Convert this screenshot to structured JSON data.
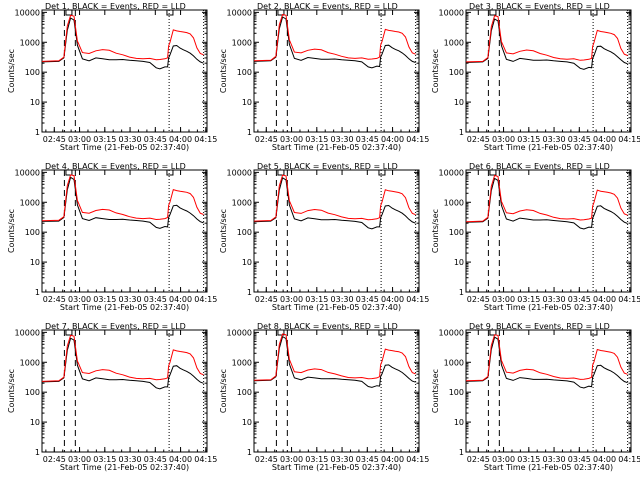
{
  "chart_data": {
    "type": "line",
    "layout": "3x3 grid of panels",
    "x_axis": {
      "label": "Start Time (21-Feb-05 02:37:40)",
      "range_minutes": [
        0,
        98
      ],
      "tick_labels": [
        "02:45",
        "03:00",
        "03:15",
        "03:30",
        "03:45",
        "04:00",
        "04:15"
      ],
      "tick_positions_minutes": [
        7.3,
        22.3,
        37.3,
        52.3,
        67.3,
        82.3,
        97.3
      ]
    },
    "y_axis": {
      "label": "Counts/sec",
      "scale": "log",
      "range": [
        1,
        12000
      ],
      "tick_labels": [
        "1",
        "10",
        "100",
        "1000",
        "10000"
      ],
      "tick_values": [
        1,
        10,
        100,
        1000,
        10000
      ]
    },
    "series_legend": {
      "black": "Events",
      "red": "LLD",
      "black_color": "#000000",
      "red_color": "#ff0000"
    },
    "markers": {
      "dashed_lines_minutes": [
        13.3,
        19.8
      ],
      "dotted_lines_minutes": [
        75.5,
        96.0
      ]
    },
    "panels": [
      {
        "title": "Det 1, BLACK = Events, RED = LLD",
        "x": [
          0,
          10,
          13,
          15,
          17,
          19,
          21,
          24,
          28,
          32,
          36,
          40,
          44,
          48,
          52,
          56,
          60,
          64,
          67.8,
          70,
          73,
          74.6,
          75.2,
          76,
          78,
          80,
          82,
          84,
          86,
          88,
          90,
          92,
          94,
          96
        ],
        "black": [
          220,
          230,
          300,
          2500,
          6500,
          5500,
          800,
          280,
          240,
          300,
          280,
          260,
          260,
          265,
          250,
          240,
          230,
          210,
          140,
          130,
          150,
          150,
          300,
          380,
          750,
          780,
          640,
          560,
          500,
          430,
          350,
          270,
          220,
          200
        ],
        "red": [
          230,
          240,
          320,
          3500,
          8000,
          7500,
          1100,
          450,
          420,
          520,
          570,
          540,
          430,
          380,
          320,
          290,
          280,
          290,
          260,
          265,
          280,
          300,
          750,
          1000,
          2600,
          2400,
          2300,
          2200,
          2100,
          1900,
          1400,
          650,
          420,
          380
        ]
      },
      {
        "title": "Det 2, BLACK = Events, RED = LLD",
        "x": [
          0,
          10,
          13,
          15,
          17,
          19,
          21,
          24,
          28,
          32,
          36,
          40,
          44,
          48,
          52,
          56,
          60,
          64,
          67.8,
          70,
          73,
          74.6,
          75.2,
          76,
          78,
          80,
          82,
          84,
          86,
          88,
          90,
          92,
          94,
          96
        ],
        "black": [
          230,
          240,
          320,
          2800,
          7000,
          6000,
          850,
          290,
          250,
          310,
          290,
          270,
          270,
          275,
          260,
          250,
          240,
          220,
          150,
          140,
          160,
          155,
          320,
          400,
          780,
          800,
          660,
          580,
          520,
          440,
          360,
          280,
          230,
          210
        ],
        "red": [
          240,
          250,
          340,
          3800,
          8500,
          8000,
          1200,
          470,
          440,
          540,
          590,
          560,
          450,
          400,
          340,
          300,
          290,
          300,
          270,
          275,
          290,
          320,
          800,
          1050,
          2700,
          2500,
          2400,
          2300,
          2200,
          2000,
          1500,
          700,
          440,
          400
        ]
      },
      {
        "title": "Det 3, BLACK = Events, RED = LLD",
        "x": [
          0,
          10,
          13,
          15,
          17,
          19,
          21,
          24,
          28,
          32,
          36,
          40,
          44,
          48,
          52,
          56,
          60,
          64,
          67.8,
          70,
          73,
          74.6,
          75.2,
          76,
          78,
          80,
          82,
          84,
          86,
          88,
          90,
          92,
          94,
          96
        ],
        "black": [
          210,
          220,
          290,
          2400,
          6000,
          5200,
          780,
          270,
          230,
          290,
          270,
          250,
          250,
          255,
          240,
          230,
          220,
          200,
          135,
          125,
          145,
          140,
          290,
          360,
          720,
          740,
          610,
          540,
          480,
          410,
          330,
          260,
          210,
          190
        ],
        "red": [
          220,
          230,
          310,
          3300,
          7800,
          7200,
          1050,
          440,
          410,
          500,
          550,
          520,
          420,
          370,
          310,
          280,
          270,
          280,
          250,
          255,
          270,
          290,
          720,
          980,
          2500,
          2300,
          2200,
          2100,
          2000,
          1800,
          1350,
          620,
          400,
          360
        ]
      },
      {
        "title": "Det 4, BLACK = Events, RED = LLD",
        "x": [
          0,
          10,
          13,
          15,
          17,
          19,
          21,
          24,
          28,
          32,
          36,
          40,
          44,
          48,
          52,
          56,
          60,
          64,
          67.8,
          70,
          73,
          74.6,
          75.2,
          76,
          78,
          80,
          82,
          84,
          86,
          88,
          90,
          92,
          94,
          96
        ],
        "black": [
          230,
          235,
          310,
          2600,
          6800,
          5800,
          820,
          285,
          245,
          305,
          285,
          265,
          265,
          270,
          255,
          245,
          235,
          215,
          145,
          135,
          155,
          150,
          310,
          390,
          760,
          790,
          650,
          570,
          510,
          435,
          355,
          275,
          225,
          205
        ],
        "red": [
          240,
          250,
          330,
          3600,
          8200,
          7800,
          1150,
          460,
          430,
          530,
          580,
          550,
          440,
          390,
          330,
          295,
          285,
          295,
          265,
          270,
          285,
          310,
          780,
          1020,
          2650,
          2450,
          2350,
          2250,
          2150,
          1950,
          1450,
          680,
          430,
          390
        ]
      },
      {
        "title": "Det 5, BLACK = Events, RED = LLD",
        "x": [
          0,
          10,
          13,
          15,
          17,
          19,
          21,
          24,
          28,
          32,
          36,
          40,
          44,
          48,
          52,
          56,
          60,
          64,
          67.8,
          70,
          73,
          74.6,
          75.2,
          76,
          78,
          80,
          82,
          84,
          86,
          88,
          90,
          92,
          94,
          96
        ],
        "black": [
          225,
          235,
          305,
          2550,
          6600,
          5600,
          810,
          280,
          240,
          300,
          280,
          260,
          260,
          265,
          250,
          240,
          230,
          210,
          140,
          130,
          150,
          150,
          305,
          385,
          750,
          780,
          640,
          560,
          500,
          430,
          350,
          270,
          220,
          200
        ],
        "red": [
          235,
          245,
          325,
          3550,
          8100,
          7600,
          1120,
          455,
          425,
          525,
          575,
          545,
          435,
          385,
          325,
          290,
          280,
          290,
          260,
          265,
          280,
          305,
          760,
          1010,
          2620,
          2420,
          2320,
          2220,
          2120,
          1920,
          1420,
          660,
          425,
          385
        ]
      },
      {
        "title": "Det 6, BLACK = Events, RED = LLD",
        "x": [
          0,
          10,
          13,
          15,
          17,
          19,
          21,
          24,
          28,
          32,
          36,
          40,
          44,
          48,
          52,
          56,
          60,
          64,
          67.8,
          70,
          73,
          74.6,
          75.2,
          76,
          78,
          80,
          82,
          84,
          86,
          88,
          90,
          92,
          94,
          96
        ],
        "black": [
          215,
          225,
          295,
          2450,
          6300,
          5400,
          790,
          275,
          235,
          295,
          275,
          255,
          255,
          260,
          245,
          235,
          225,
          205,
          138,
          128,
          148,
          145,
          295,
          370,
          735,
          760,
          625,
          550,
          490,
          420,
          340,
          265,
          215,
          195
        ],
        "red": [
          225,
          235,
          315,
          3400,
          7900,
          7300,
          1080,
          445,
          415,
          510,
          560,
          530,
          425,
          375,
          315,
          285,
          275,
          285,
          255,
          260,
          275,
          295,
          740,
          990,
          2550,
          2350,
          2250,
          2150,
          2050,
          1850,
          1380,
          640,
          410,
          370
        ]
      },
      {
        "title": "Det 7, BLACK = Events, RED = LLD",
        "x": [
          0,
          10,
          13,
          15,
          17,
          19,
          21,
          24,
          28,
          32,
          36,
          40,
          44,
          48,
          52,
          56,
          60,
          64,
          67.8,
          70,
          73,
          74.6,
          75.2,
          76,
          78,
          80,
          82,
          84,
          86,
          88,
          90,
          92,
          94,
          96
        ],
        "black": [
          220,
          230,
          300,
          2500,
          6400,
          5500,
          800,
          280,
          240,
          300,
          280,
          260,
          260,
          265,
          250,
          240,
          230,
          210,
          140,
          130,
          150,
          150,
          300,
          380,
          740,
          770,
          630,
          555,
          495,
          425,
          345,
          268,
          218,
          198
        ],
        "red": [
          230,
          240,
          320,
          3500,
          8000,
          7500,
          1100,
          450,
          420,
          520,
          570,
          540,
          430,
          380,
          320,
          290,
          280,
          290,
          260,
          265,
          280,
          300,
          750,
          1000,
          2600,
          2400,
          2300,
          2200,
          2100,
          1900,
          1400,
          650,
          420,
          380
        ]
      },
      {
        "title": "Det 8, BLACK = Events, RED = LLD",
        "x": [
          0,
          10,
          13,
          15,
          17,
          19,
          21,
          24,
          28,
          32,
          36,
          40,
          44,
          48,
          52,
          56,
          60,
          64,
          67.8,
          70,
          73,
          74.6,
          75.2,
          76,
          78,
          80,
          82,
          84,
          86,
          88,
          90,
          92,
          94,
          96
        ],
        "black": [
          240,
          250,
          330,
          2900,
          7200,
          6200,
          870,
          300,
          260,
          320,
          300,
          280,
          280,
          285,
          270,
          260,
          250,
          230,
          155,
          145,
          165,
          160,
          330,
          410,
          800,
          820,
          680,
          600,
          535,
          455,
          370,
          290,
          235,
          215
        ],
        "red": [
          250,
          260,
          350,
          3900,
          8800,
          8300,
          1250,
          480,
          450,
          550,
          600,
          570,
          460,
          410,
          350,
          310,
          300,
          310,
          280,
          285,
          300,
          330,
          820,
          1080,
          2750,
          2550,
          2450,
          2350,
          2250,
          2050,
          1550,
          720,
          450,
          410
        ]
      },
      {
        "title": "Det 9, BLACK = Events, RED = LLD",
        "x": [
          0,
          10,
          13,
          15,
          17,
          19,
          21,
          24,
          28,
          32,
          36,
          40,
          44,
          48,
          52,
          56,
          60,
          64,
          67.8,
          70,
          73,
          74.6,
          75.2,
          76,
          78,
          80,
          82,
          84,
          86,
          88,
          90,
          92,
          94,
          96
        ],
        "black": [
          230,
          240,
          315,
          2650,
          6900,
          5900,
          830,
          288,
          248,
          308,
          288,
          268,
          268,
          272,
          258,
          248,
          238,
          218,
          148,
          138,
          158,
          152,
          315,
          395,
          770,
          795,
          655,
          575,
          515,
          438,
          358,
          278,
          228,
          208
        ],
        "red": [
          240,
          250,
          335,
          3650,
          8300,
          7900,
          1160,
          465,
          435,
          535,
          585,
          555,
          445,
          395,
          335,
          298,
          288,
          298,
          268,
          272,
          288,
          315,
          790,
          1030,
          2680,
          2480,
          2380,
          2280,
          2180,
          1980,
          1480,
          690,
          435,
          395
        ]
      }
    ]
  }
}
